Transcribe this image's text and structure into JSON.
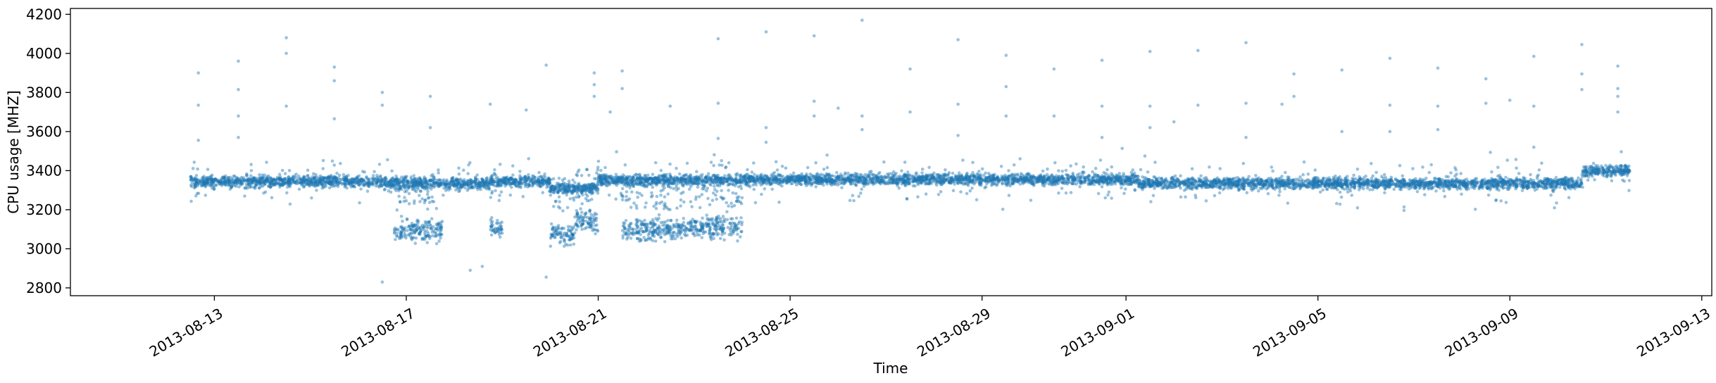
{
  "chart_data": {
    "type": "scatter",
    "title": "",
    "xlabel": "Time",
    "ylabel": "CPU usage [MHZ]",
    "xlim": [
      "2013-08-10T00:00",
      "2013-09-13T05:00"
    ],
    "ylim": [
      2760,
      4230
    ],
    "x_ticks": [
      "2013-08-13",
      "2013-08-17",
      "2013-08-21",
      "2013-08-25",
      "2013-08-29",
      "2013-09-01",
      "2013-09-05",
      "2013-09-09",
      "2013-09-13"
    ],
    "y_ticks": [
      2800,
      3000,
      3200,
      3400,
      3600,
      3800,
      4000,
      4200
    ],
    "grid": false,
    "legend": false,
    "point_color": "#1f77b4",
    "point_alpha": 0.45,
    "baseline_profile": [
      {
        "from": "2013-08-12T12:00",
        "to": "2013-08-16T12:00",
        "y": 3345
      },
      {
        "from": "2013-08-16T12:00",
        "to": "2013-08-18T18:00",
        "y": 3335
      },
      {
        "from": "2013-08-18T18:00",
        "to": "2013-08-20T00:00",
        "y": 3345
      },
      {
        "from": "2013-08-20T00:00",
        "to": "2013-08-21T00:00",
        "y": 3310
      },
      {
        "from": "2013-08-21T00:00",
        "to": "2013-08-24T00:00",
        "y": 3350
      },
      {
        "from": "2013-08-24T00:00",
        "to": "2013-09-01T06:00",
        "y": 3355
      },
      {
        "from": "2013-09-01T06:00",
        "to": "2013-09-10T12:00",
        "y": 3335
      },
      {
        "from": "2013-09-10T12:00",
        "to": "2013-09-11T12:00",
        "y": 3400
      }
    ],
    "low_clusters": [
      {
        "from": "2013-08-16T18:00",
        "to": "2013-08-17T18:00",
        "y": 3095
      },
      {
        "from": "2013-08-18T18:00",
        "to": "2013-08-19T00:00",
        "y": 3110
      },
      {
        "from": "2013-08-20T00:00",
        "to": "2013-08-20T12:00",
        "y": 3080
      },
      {
        "from": "2013-08-20T12:00",
        "to": "2013-08-21T00:00",
        "y": 3140
      },
      {
        "from": "2013-08-21T12:00",
        "to": "2013-08-23T00:00",
        "y": 3100
      },
      {
        "from": "2013-08-23T00:00",
        "to": "2013-08-24T00:00",
        "y": 3110
      }
    ],
    "outliers": [
      {
        "x": "2013-08-12T16:00",
        "y": 3900
      },
      {
        "x": "2013-08-12T16:00",
        "y": 3735
      },
      {
        "x": "2013-08-12T16:00",
        "y": 3555
      },
      {
        "x": "2013-08-13T12:00",
        "y": 3960
      },
      {
        "x": "2013-08-13T12:00",
        "y": 3815
      },
      {
        "x": "2013-08-13T12:00",
        "y": 3680
      },
      {
        "x": "2013-08-13T12:00",
        "y": 3570
      },
      {
        "x": "2013-08-14T12:00",
        "y": 4080
      },
      {
        "x": "2013-08-14T12:00",
        "y": 4000
      },
      {
        "x": "2013-08-14T12:00",
        "y": 3730
      },
      {
        "x": "2013-08-15T12:00",
        "y": 3930
      },
      {
        "x": "2013-08-15T12:00",
        "y": 3860
      },
      {
        "x": "2013-08-15T12:00",
        "y": 3665
      },
      {
        "x": "2013-08-16T12:00",
        "y": 3800
      },
      {
        "x": "2013-08-16T12:00",
        "y": 3735
      },
      {
        "x": "2013-08-17T12:00",
        "y": 3780
      },
      {
        "x": "2013-08-17T12:00",
        "y": 3620
      },
      {
        "x": "2013-08-16T12:00",
        "y": 2830
      },
      {
        "x": "2013-08-18T08:00",
        "y": 2890
      },
      {
        "x": "2013-08-18T14:00",
        "y": 2910
      },
      {
        "x": "2013-08-18T18:00",
        "y": 3740
      },
      {
        "x": "2013-08-19T12:00",
        "y": 3710
      },
      {
        "x": "2013-08-19T22:00",
        "y": 3940
      },
      {
        "x": "2013-08-19T22:00",
        "y": 2855
      },
      {
        "x": "2013-08-20T22:00",
        "y": 3900
      },
      {
        "x": "2013-08-20T22:00",
        "y": 3840
      },
      {
        "x": "2013-08-20T22:00",
        "y": 3780
      },
      {
        "x": "2013-08-21T12:00",
        "y": 3910
      },
      {
        "x": "2013-08-21T12:00",
        "y": 3820
      },
      {
        "x": "2013-08-21T06:00",
        "y": 3700
      },
      {
        "x": "2013-08-22T12:00",
        "y": 3730
      },
      {
        "x": "2013-08-23T12:00",
        "y": 4075
      },
      {
        "x": "2013-08-23T12:00",
        "y": 3745
      },
      {
        "x": "2013-08-23T12:00",
        "y": 3565
      },
      {
        "x": "2013-08-24T12:00",
        "y": 4110
      },
      {
        "x": "2013-08-24T12:00",
        "y": 3620
      },
      {
        "x": "2013-08-24T12:00",
        "y": 3545
      },
      {
        "x": "2013-08-25T12:00",
        "y": 4090
      },
      {
        "x": "2013-08-25T12:00",
        "y": 3755
      },
      {
        "x": "2013-08-25T12:00",
        "y": 3680
      },
      {
        "x": "2013-08-26T00:00",
        "y": 3720
      },
      {
        "x": "2013-08-26T12:00",
        "y": 4170
      },
      {
        "x": "2013-08-26T12:00",
        "y": 3680
      },
      {
        "x": "2013-08-26T12:00",
        "y": 3610
      },
      {
        "x": "2013-08-27T12:00",
        "y": 3920
      },
      {
        "x": "2013-08-27T12:00",
        "y": 3700
      },
      {
        "x": "2013-08-28T12:00",
        "y": 4070
      },
      {
        "x": "2013-08-28T12:00",
        "y": 3740
      },
      {
        "x": "2013-08-28T12:00",
        "y": 3580
      },
      {
        "x": "2013-08-29T12:00",
        "y": 3990
      },
      {
        "x": "2013-08-29T12:00",
        "y": 3830
      },
      {
        "x": "2013-08-29T12:00",
        "y": 3680
      },
      {
        "x": "2013-08-30T12:00",
        "y": 3920
      },
      {
        "x": "2013-08-30T12:00",
        "y": 3680
      },
      {
        "x": "2013-08-31T12:00",
        "y": 3965
      },
      {
        "x": "2013-08-31T12:00",
        "y": 3730
      },
      {
        "x": "2013-08-31T12:00",
        "y": 3570
      },
      {
        "x": "2013-09-01T12:00",
        "y": 4010
      },
      {
        "x": "2013-09-01T12:00",
        "y": 3730
      },
      {
        "x": "2013-09-01T12:00",
        "y": 3620
      },
      {
        "x": "2013-09-02T12:00",
        "y": 4015
      },
      {
        "x": "2013-09-02T12:00",
        "y": 3735
      },
      {
        "x": "2013-09-02T00:00",
        "y": 3650
      },
      {
        "x": "2013-09-03T12:00",
        "y": 4055
      },
      {
        "x": "2013-09-03T12:00",
        "y": 3745
      },
      {
        "x": "2013-09-03T12:00",
        "y": 3570
      },
      {
        "x": "2013-09-04T12:00",
        "y": 3895
      },
      {
        "x": "2013-09-04T12:00",
        "y": 3780
      },
      {
        "x": "2013-09-04T06:00",
        "y": 3740
      },
      {
        "x": "2013-09-05T12:00",
        "y": 3915
      },
      {
        "x": "2013-09-05T12:00",
        "y": 3600
      },
      {
        "x": "2013-09-06T12:00",
        "y": 3975
      },
      {
        "x": "2013-09-06T12:00",
        "y": 3735
      },
      {
        "x": "2013-09-06T12:00",
        "y": 3600
      },
      {
        "x": "2013-09-07T12:00",
        "y": 3925
      },
      {
        "x": "2013-09-07T12:00",
        "y": 3730
      },
      {
        "x": "2013-09-07T12:00",
        "y": 3610
      },
      {
        "x": "2013-09-08T12:00",
        "y": 3870
      },
      {
        "x": "2013-09-08T12:00",
        "y": 3745
      },
      {
        "x": "2013-09-09T00:00",
        "y": 3760
      },
      {
        "x": "2013-09-09T12:00",
        "y": 3985
      },
      {
        "x": "2013-09-09T12:00",
        "y": 3730
      },
      {
        "x": "2013-09-09T12:00",
        "y": 3520
      },
      {
        "x": "2013-09-10T12:00",
        "y": 4045
      },
      {
        "x": "2013-09-10T12:00",
        "y": 3895
      },
      {
        "x": "2013-09-10T12:00",
        "y": 3815
      },
      {
        "x": "2013-09-11T06:00",
        "y": 3935
      },
      {
        "x": "2013-09-11T06:00",
        "y": 3820
      },
      {
        "x": "2013-09-11T06:00",
        "y": 3780
      },
      {
        "x": "2013-09-11T06:00",
        "y": 3700
      }
    ]
  }
}
